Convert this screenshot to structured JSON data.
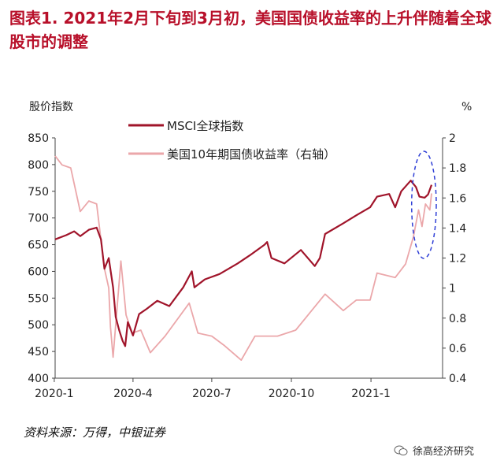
{
  "title": "图表1.  2021年2月下旬到3月初，美国国债收益率的上升伴随着全球股市的调整",
  "source": "资料来源：万得，中银证券",
  "watermark": "徐高经济研究",
  "colors": {
    "title": "#b8102a",
    "msci": "#a0142a",
    "yield": "#eba7aa",
    "highlight": "#2f3fd6"
  },
  "chart_data": {
    "type": "line",
    "left_axis_label": "股价指数",
    "right_axis_label": "%",
    "left_ylim": [
      400,
      850
    ],
    "left_ticks": [
      400,
      450,
      500,
      550,
      600,
      650,
      700,
      750,
      800,
      850
    ],
    "right_ylim": [
      0.4,
      2.0
    ],
    "right_ticks": [
      "0.4",
      "0.6",
      "0.8",
      "1",
      "1.2",
      "1.4",
      "1.6",
      "1.8",
      "2"
    ],
    "x_ticks": [
      "2020-1",
      "2020-4",
      "2020-7",
      "2020-10",
      "2021-1"
    ],
    "x_range": [
      "2020-01-02",
      "2021-03-12"
    ],
    "series": [
      {
        "name": "MSCI全球指数",
        "axis": "left",
        "points": [
          [
            "2020-01-02",
            660
          ],
          [
            "2020-01-15",
            668
          ],
          [
            "2020-01-24",
            675
          ],
          [
            "2020-01-31",
            666
          ],
          [
            "2020-02-10",
            678
          ],
          [
            "2020-02-19",
            682
          ],
          [
            "2020-02-24",
            660
          ],
          [
            "2020-02-28",
            605
          ],
          [
            "2020-03-04",
            625
          ],
          [
            "2020-03-09",
            570
          ],
          [
            "2020-03-12",
            515
          ],
          [
            "2020-03-16",
            490
          ],
          [
            "2020-03-20",
            470
          ],
          [
            "2020-03-23",
            460
          ],
          [
            "2020-03-26",
            505
          ],
          [
            "2020-04-01",
            480
          ],
          [
            "2020-04-08",
            520
          ],
          [
            "2020-04-17",
            530
          ],
          [
            "2020-04-29",
            545
          ],
          [
            "2020-05-13",
            535
          ],
          [
            "2020-05-29",
            570
          ],
          [
            "2020-06-08",
            600
          ],
          [
            "2020-06-11",
            570
          ],
          [
            "2020-06-23",
            585
          ],
          [
            "2020-07-10",
            595
          ],
          [
            "2020-07-31",
            615
          ],
          [
            "2020-08-14",
            630
          ],
          [
            "2020-08-31",
            650
          ],
          [
            "2020-09-03",
            655
          ],
          [
            "2020-09-08",
            625
          ],
          [
            "2020-09-23",
            615
          ],
          [
            "2020-10-12",
            640
          ],
          [
            "2020-10-28",
            610
          ],
          [
            "2020-11-03",
            625
          ],
          [
            "2020-11-09",
            670
          ],
          [
            "2020-11-30",
            690
          ],
          [
            "2020-12-15",
            705
          ],
          [
            "2020-12-31",
            720
          ],
          [
            "2021-01-08",
            740
          ],
          [
            "2021-01-22",
            745
          ],
          [
            "2021-01-29",
            720
          ],
          [
            "2021-02-05",
            750
          ],
          [
            "2021-02-16",
            770
          ],
          [
            "2021-02-22",
            758
          ],
          [
            "2021-02-26",
            740
          ],
          [
            "2021-03-04",
            738
          ],
          [
            "2021-03-08",
            744
          ],
          [
            "2021-03-12",
            762
          ]
        ]
      },
      {
        "name": "美国10年期国债收益率（右轴）",
        "axis": "right",
        "points": [
          [
            "2020-01-02",
            1.88
          ],
          [
            "2020-01-10",
            1.82
          ],
          [
            "2020-01-20",
            1.8
          ],
          [
            "2020-01-31",
            1.51
          ],
          [
            "2020-02-10",
            1.58
          ],
          [
            "2020-02-19",
            1.56
          ],
          [
            "2020-02-28",
            1.13
          ],
          [
            "2020-03-04",
            1.0
          ],
          [
            "2020-03-06",
            0.74
          ],
          [
            "2020-03-09",
            0.54
          ],
          [
            "2020-03-18",
            1.18
          ],
          [
            "2020-03-24",
            0.82
          ],
          [
            "2020-03-31",
            0.7
          ],
          [
            "2020-04-10",
            0.72
          ],
          [
            "2020-04-21",
            0.57
          ],
          [
            "2020-05-08",
            0.68
          ],
          [
            "2020-06-05",
            0.9
          ],
          [
            "2020-06-15",
            0.7
          ],
          [
            "2020-07-01",
            0.68
          ],
          [
            "2020-07-15",
            0.62
          ],
          [
            "2020-08-04",
            0.52
          ],
          [
            "2020-08-20",
            0.68
          ],
          [
            "2020-09-15",
            0.68
          ],
          [
            "2020-10-06",
            0.72
          ],
          [
            "2020-10-23",
            0.84
          ],
          [
            "2020-11-09",
            0.96
          ],
          [
            "2020-11-30",
            0.85
          ],
          [
            "2020-12-15",
            0.92
          ],
          [
            "2020-12-31",
            0.92
          ],
          [
            "2021-01-08",
            1.1
          ],
          [
            "2021-01-29",
            1.07
          ],
          [
            "2021-02-10",
            1.16
          ],
          [
            "2021-02-19",
            1.34
          ],
          [
            "2021-02-25",
            1.52
          ],
          [
            "2021-03-01",
            1.41
          ],
          [
            "2021-03-05",
            1.56
          ],
          [
            "2021-03-10",
            1.52
          ],
          [
            "2021-03-12",
            1.63
          ]
        ]
      }
    ],
    "annotation": {
      "shape": "dashed-ellipse",
      "from": "2021-02-17",
      "to": "2021-03-12"
    }
  }
}
